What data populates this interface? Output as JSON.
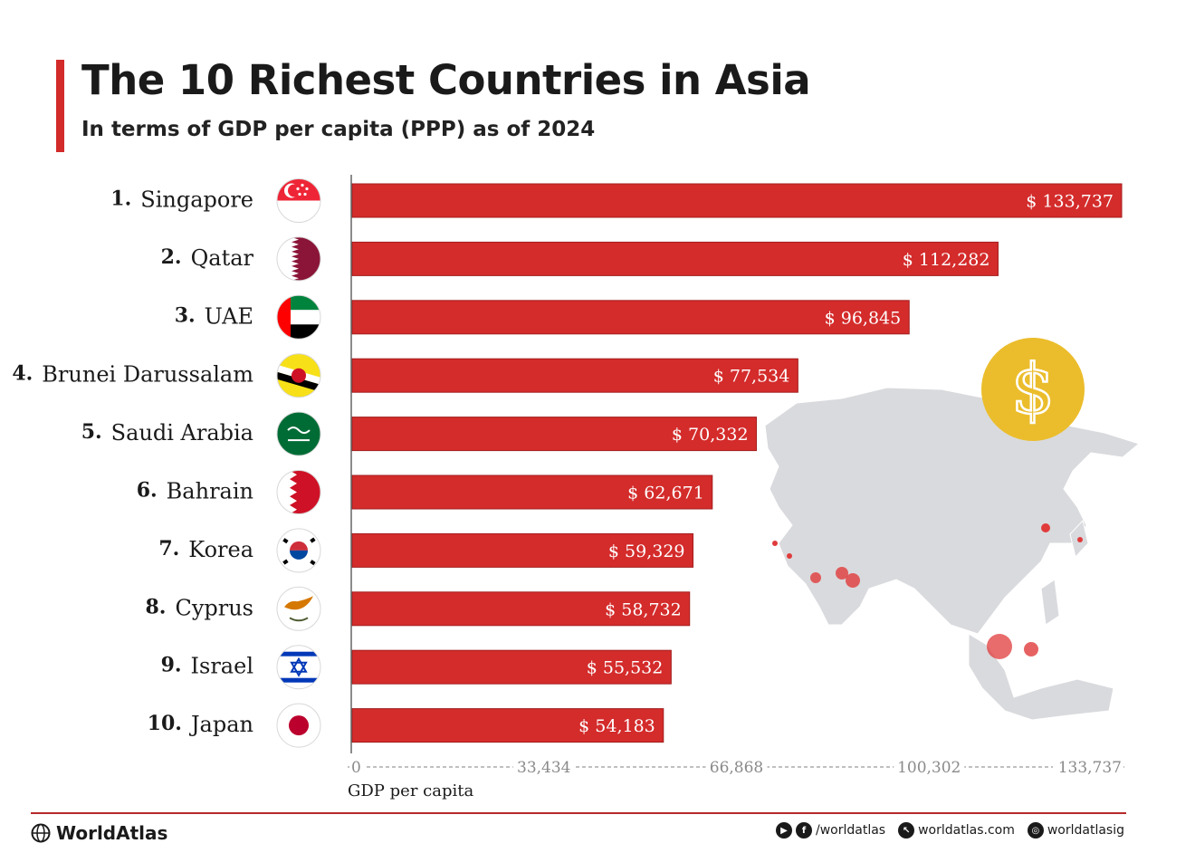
{
  "header": {
    "title": "The 10 Richest Countries in Asia",
    "subtitle": "In terms of GDP per capita (PPP) as of 2024"
  },
  "chart_data": {
    "type": "bar",
    "orientation": "horizontal",
    "title": "The 10 Richest Countries in Asia",
    "subtitle": "In terms of GDP per capita (PPP) as of 2024",
    "xlabel": "GDP per capita",
    "xlim": [
      0,
      133737
    ],
    "ticks": [
      0,
      33434,
      66868,
      100302,
      133737
    ],
    "tick_labels": [
      "0",
      "33,434",
      "66,868",
      "100,302",
      "133,737"
    ],
    "ranks": [
      "1.",
      "2.",
      "3.",
      "4.",
      "5.",
      "6.",
      "7.",
      "8.",
      "9.",
      "10."
    ],
    "categories": [
      "Singapore",
      "Qatar",
      "UAE",
      "Brunei Darussalam",
      "Saudi Arabia",
      "Bahrain",
      "Korea",
      "Cyprus",
      "Israel",
      "Japan"
    ],
    "values": [
      133737,
      112282,
      96845,
      77534,
      70332,
      62671,
      59329,
      58732,
      55532,
      54183
    ],
    "value_labels": [
      "$ 133,737",
      "$ 112,282",
      "$ 96,845",
      "$ 77,534",
      "$ 70,332",
      "$ 62,671",
      "$ 59,329",
      "$ 58,732",
      "$ 55,532",
      "$ 54,183"
    ],
    "flags": [
      "singapore-flag-icon",
      "qatar-flag-icon",
      "uae-flag-icon",
      "brunei-flag-icon",
      "saudi-arabia-flag-icon",
      "bahrain-flag-icon",
      "korea-flag-icon",
      "cyprus-flag-icon",
      "israel-flag-icon",
      "japan-flag-icon"
    ],
    "bar_color": "#d42b2b",
    "grid": false
  },
  "decor": {
    "map_icon": "asia-map-icon",
    "coin_icon": "dollar-coin-icon",
    "coin_color": "#ebbd2c",
    "map_color": "#d9dadd"
  },
  "footer": {
    "brand": "WorldAtlas",
    "brand_icon": "globe-icon",
    "social_handle": "/worldatlas",
    "website": "worldatlas.com",
    "instagram": "worldatlasig"
  }
}
